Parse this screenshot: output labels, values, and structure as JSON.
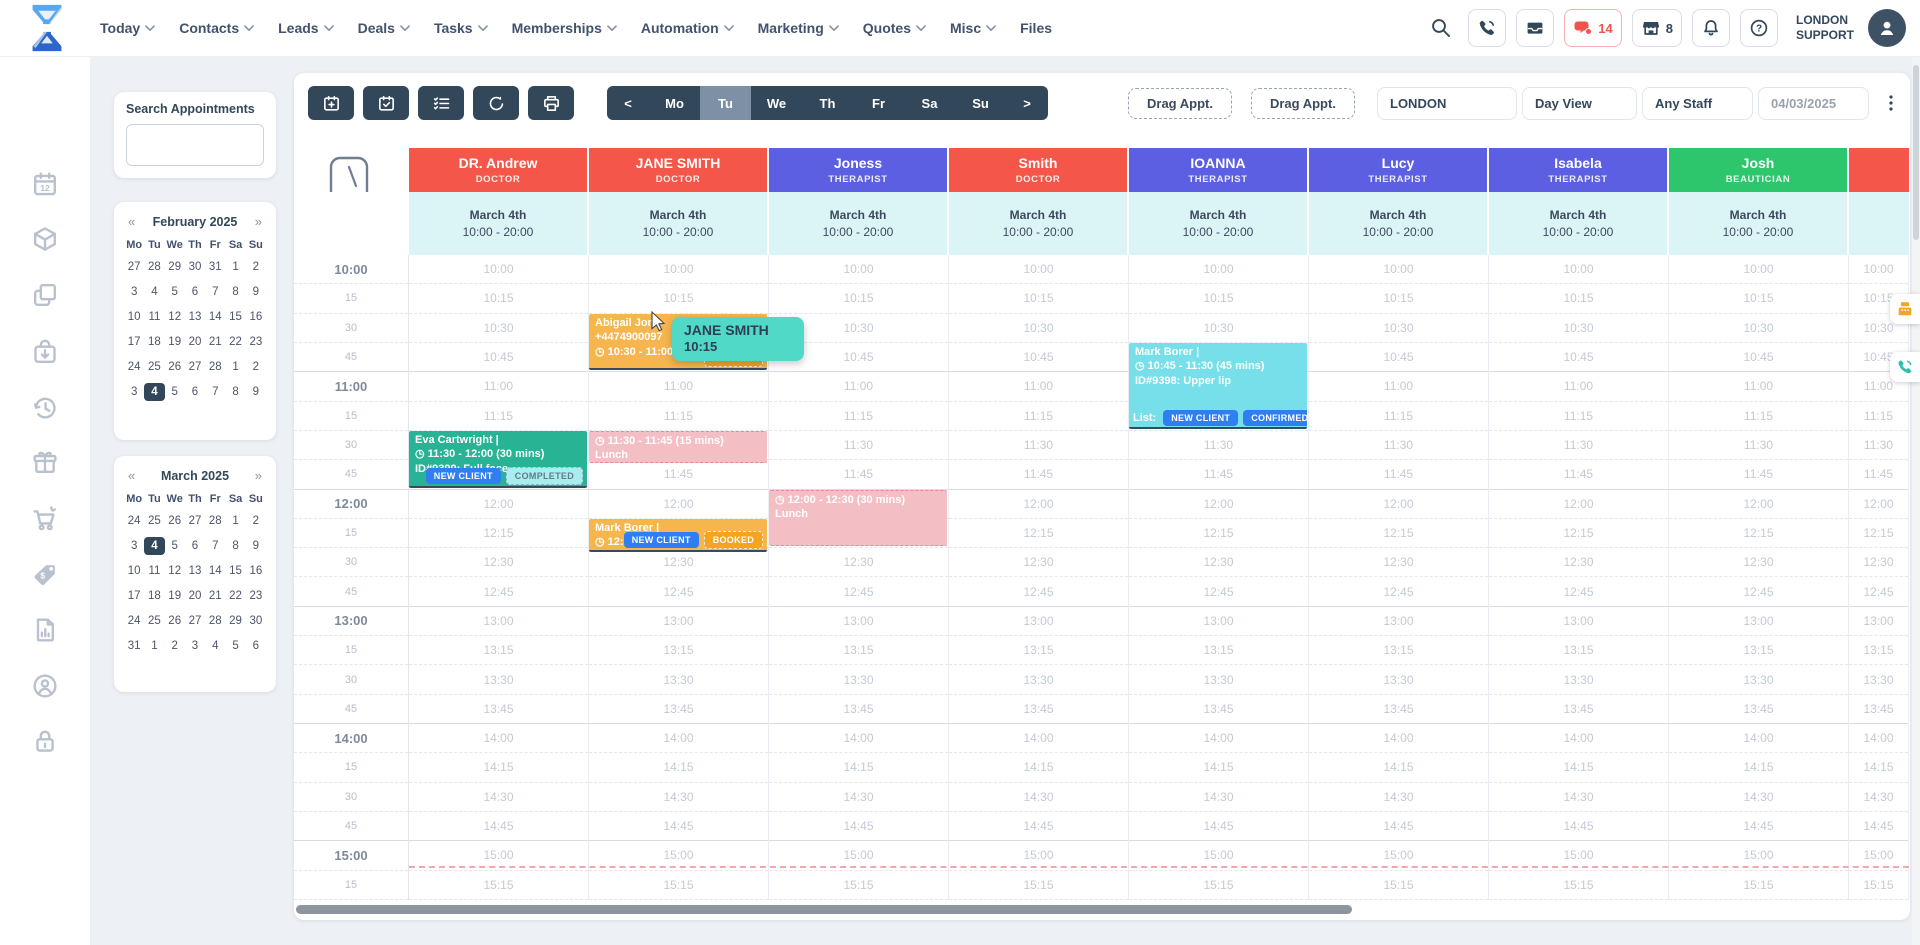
{
  "topnav": {
    "items": [
      {
        "label": "Today",
        "dropdown": true
      },
      {
        "label": "Contacts",
        "dropdown": true
      },
      {
        "label": "Leads",
        "dropdown": true
      },
      {
        "label": "Deals",
        "dropdown": true
      },
      {
        "label": "Tasks",
        "dropdown": true
      },
      {
        "label": "Memberships",
        "dropdown": true
      },
      {
        "label": "Automation",
        "dropdown": true
      },
      {
        "label": "Marketing",
        "dropdown": true
      },
      {
        "label": "Quotes",
        "dropdown": true
      },
      {
        "label": "Misc",
        "dropdown": true
      },
      {
        "label": "Files",
        "dropdown": false
      }
    ],
    "badges": {
      "chat": "14",
      "store": "8"
    },
    "account": {
      "line1": "LONDON",
      "line2": "SUPPORT"
    }
  },
  "sidebar": {
    "icons": [
      "calendar-date",
      "products-cube",
      "duplicate",
      "orders-bag",
      "history",
      "gift",
      "cart",
      "price-tag",
      "report-doc",
      "account-circle",
      "lock"
    ]
  },
  "left_panel": {
    "search_label": "Search Appointments",
    "search_value": "",
    "calendars": [
      {
        "title": "February 2025",
        "prev": "«",
        "next": "»",
        "day_names": [
          "Mo",
          "Tu",
          "We",
          "Th",
          "Fr",
          "Sa",
          "Su"
        ],
        "weeks": [
          [
            "27",
            "28",
            "29",
            "30",
            "31",
            "1",
            "2"
          ],
          [
            "3",
            "4",
            "5",
            "6",
            "7",
            "8",
            "9"
          ],
          [
            "10",
            "11",
            "12",
            "13",
            "14",
            "15",
            "16"
          ],
          [
            "17",
            "18",
            "19",
            "20",
            "21",
            "22",
            "23"
          ],
          [
            "24",
            "25",
            "26",
            "27",
            "28",
            "1",
            "2"
          ],
          [
            "3",
            "4",
            "5",
            "6",
            "7",
            "8",
            "9"
          ]
        ],
        "selected": {
          "week": 5,
          "day": 1
        }
      },
      {
        "title": "March 2025",
        "prev": "«",
        "next": "»",
        "day_names": [
          "Mo",
          "Tu",
          "We",
          "Th",
          "Fr",
          "Sa",
          "Su"
        ],
        "weeks": [
          [
            "24",
            "25",
            "26",
            "27",
            "28",
            "1",
            "2"
          ],
          [
            "3",
            "4",
            "5",
            "6",
            "7",
            "8",
            "9"
          ],
          [
            "10",
            "11",
            "12",
            "13",
            "14",
            "15",
            "16"
          ],
          [
            "17",
            "18",
            "19",
            "20",
            "21",
            "22",
            "23"
          ],
          [
            "24",
            "25",
            "26",
            "27",
            "28",
            "29",
            "30"
          ],
          [
            "31",
            "1",
            "2",
            "3",
            "4",
            "5",
            "6"
          ]
        ],
        "selected": {
          "week": 1,
          "day": 1
        }
      }
    ]
  },
  "toolbar": {
    "icon_buttons": [
      "calendar-plus",
      "calendar-check",
      "checklist",
      "refresh",
      "printer"
    ],
    "day_tabs": {
      "prev": "<",
      "days": [
        "Mo",
        "Tu",
        "We",
        "Th",
        "Fr",
        "Sa",
        "Su"
      ],
      "active": "Tu",
      "next": ">"
    },
    "drag_buttons": [
      "Drag Appt.",
      "Drag Appt."
    ],
    "filters": {
      "location": "LONDON",
      "view": "Day View",
      "staff": "Any Staff",
      "date": "04/03/2025"
    }
  },
  "schedule": {
    "columns": [
      {
        "name": "DR. Andrew",
        "role": "DOCTOR",
        "color": "red",
        "date": "March 4th",
        "hours": "10:00 - 20:00"
      },
      {
        "name": "JANE SMITH",
        "role": "DOCTOR",
        "color": "red",
        "date": "March 4th",
        "hours": "10:00 - 20:00"
      },
      {
        "name": "Joness",
        "role": "THERAPIST",
        "color": "blue",
        "date": "March 4th",
        "hours": "10:00 - 20:00"
      },
      {
        "name": "Smith",
        "role": "DOCTOR",
        "color": "red",
        "date": "March 4th",
        "hours": "10:00 - 20:00"
      },
      {
        "name": "IOANNA",
        "role": "THERAPIST",
        "color": "blue",
        "date": "March 4th",
        "hours": "10:00 - 20:00"
      },
      {
        "name": "Lucy",
        "role": "THERAPIST",
        "color": "blue",
        "date": "March 4th",
        "hours": "10:00 - 20:00"
      },
      {
        "name": "Isabela",
        "role": "THERAPIST",
        "color": "blue",
        "date": "March 4th",
        "hours": "10:00 - 20:00"
      },
      {
        "name": "Josh",
        "role": "BEAUTICIAN",
        "color": "green",
        "date": "March 4th",
        "hours": "10:00 - 20:00"
      },
      {
        "name": "",
        "role": "",
        "color": "red",
        "date": "",
        "hours": "",
        "partial": true
      }
    ],
    "times": [
      "10:00",
      "10:15",
      "10:30",
      "10:45",
      "11:00",
      "11:15",
      "11:30",
      "11:45",
      "12:00",
      "12:15",
      "12:30",
      "12:45",
      "13:00",
      "13:15",
      "13:30",
      "13:45",
      "14:00",
      "14:15",
      "14:30",
      "14:45",
      "15:00",
      "15:15"
    ],
    "appointments": [
      {
        "column": 0,
        "start": "11:30",
        "duration_slots": 2,
        "style": "green",
        "name": "Eva Cartwright |",
        "time": "11:30 - 12:00 (30 mins)",
        "detail": "ID#9399: Full face",
        "badges": [
          {
            "label": "NEW CLIENT",
            "style": "blue"
          },
          {
            "label": "COMPLETED",
            "style": "teal"
          }
        ]
      },
      {
        "column": 1,
        "start": "10:30",
        "duration_slots": 2,
        "style": "orange",
        "name": "Abigail Jon",
        "phone": "+4474900097",
        "time": "10:30 - 11:00 (30 mi",
        "badges": [
          {
            "label": "BOOKED",
            "style": "orange"
          }
        ]
      },
      {
        "column": 1,
        "start": "11:30",
        "duration_slots": 1.15,
        "style": "pink",
        "time": "11:30 - 11:45 (15 mins)",
        "detail": "Lunch"
      },
      {
        "column": 1,
        "start": "12:15",
        "duration_slots": 1.2,
        "style": "orange",
        "name": "Mark Borer |",
        "time": "12:15 -",
        "badges": [
          {
            "label": "NEW CLIENT",
            "style": "blue"
          },
          {
            "label": "BOOKED",
            "style": "orange"
          }
        ]
      },
      {
        "column": 2,
        "start": "12:00",
        "duration_slots": 2,
        "style": "pink",
        "time": "12:00 - 12:30 (30 mins)",
        "detail": "Lunch"
      },
      {
        "column": 4,
        "start": "10:45",
        "duration_slots": 3,
        "style": "cyan",
        "name": "Mark Borer |",
        "time": "10:45 - 11:30 (45 mins)",
        "detail": "ID#9398: Upper lip",
        "list_label": "List:",
        "badges": [
          {
            "label": "NEW CLIENT",
            "style": "blue"
          },
          {
            "label": "CONFIRMED",
            "style": "blue"
          }
        ]
      }
    ],
    "tooltip": {
      "name": "JANE SMITH",
      "time": "10:15"
    }
  },
  "colors": {
    "staff_red": "#f4564a",
    "staff_blue": "#5d5fe3",
    "staff_green": "#2ec66d",
    "appointment_orange": "#f7b54d",
    "appointment_green": "#28b394",
    "appointment_pink": "#f3bfc4",
    "appointment_cyan": "#77dfe9",
    "badge_blue": "#2f7ef2",
    "badge_orange": "#f5a41f",
    "badge_teal": "#a9edf1",
    "tooltip_teal": "#4fd9c6",
    "accent_navy": "#33475b",
    "alert_red": "#f2544c"
  }
}
